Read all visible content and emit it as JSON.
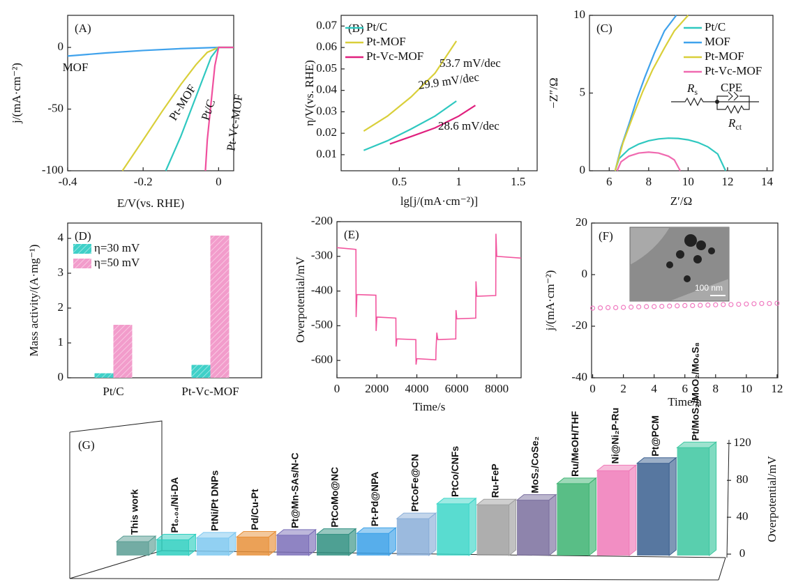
{
  "chart_data": [
    {
      "type": "line",
      "label": "(A)",
      "xlabel": "E/V(vs. RHE)",
      "ylabel": "j/(mA·cm⁻²)",
      "xlim": [
        -0.4,
        0.04
      ],
      "ylim": [
        -100,
        26
      ],
      "xticks": [
        -0.4,
        -0.2,
        0
      ],
      "yticks": [
        -100,
        -50,
        0
      ],
      "legend": false,
      "series": [
        {
          "name": "MOF",
          "color": "#3fa2ec",
          "x": [
            -0.4,
            -0.3,
            -0.2,
            -0.1,
            0,
            0.04
          ],
          "values": [
            -7,
            -4.5,
            -2.5,
            -1,
            0,
            0
          ]
        },
        {
          "name": "Pt-MOF",
          "color": "#d9cf3a",
          "x": [
            -0.255,
            -0.2,
            -0.15,
            -0.1,
            -0.06,
            -0.03,
            0,
            0.04
          ],
          "values": [
            -100,
            -75,
            -52,
            -30,
            -14,
            -4,
            0,
            0
          ]
        },
        {
          "name": "Pt/C",
          "color": "#2fc8c0",
          "x": [
            -0.14,
            -0.1,
            -0.07,
            -0.04,
            -0.02,
            0,
            0.04
          ],
          "values": [
            -100,
            -72,
            -48,
            -24,
            -8,
            0,
            0
          ]
        },
        {
          "name": "Pt-Vc-MOF",
          "color": "#f0509e",
          "x": [
            -0.035,
            -0.03,
            -0.02,
            -0.01,
            0,
            0.04
          ],
          "values": [
            -100,
            -75,
            -45,
            -15,
            0,
            0
          ]
        }
      ]
    },
    {
      "type": "line",
      "label": "(B)",
      "xlabel": "lg[j/(mA·cm⁻²)]",
      "ylabel": "η/V(vs. RHE)",
      "xlim": [
        0.01,
        1.66
      ],
      "ylim": [
        0.0025,
        0.075
      ],
      "xticks": [
        0.5,
        1.0,
        1.5
      ],
      "yticks": [
        0.01,
        0.02,
        0.03,
        0.04,
        0.05,
        0.06,
        0.07
      ],
      "legend": "upper left",
      "series": [
        {
          "name": "Pt/C",
          "color": "#2fc8c0",
          "x": [
            0.2,
            0.4,
            0.6,
            0.8,
            0.98
          ],
          "values": [
            0.012,
            0.0165,
            0.022,
            0.028,
            0.035
          ]
        },
        {
          "name": "Pt-MOF",
          "color": "#d9cf3a",
          "x": [
            0.2,
            0.4,
            0.6,
            0.8,
            0.98
          ],
          "values": [
            0.021,
            0.028,
            0.037,
            0.048,
            0.063
          ]
        },
        {
          "name": "Pt-Vc-MOF",
          "color": "#e0207e",
          "x": [
            0.42,
            0.6,
            0.8,
            1.0,
            1.14
          ],
          "values": [
            0.015,
            0.0185,
            0.0225,
            0.028,
            0.033
          ]
        }
      ],
      "annotations": [
        "53.7 mV/dec",
        "29.9 mV/dec",
        "28.6 mV/dec"
      ]
    },
    {
      "type": "line",
      "label": "(C)",
      "xlabel": "Z′/Ω",
      "ylabel": "−Z″/Ω",
      "xlim": [
        5,
        14.3
      ],
      "ylim": [
        0,
        10
      ],
      "xticks": [
        6,
        8,
        10,
        12,
        14
      ],
      "yticks": [
        0,
        5,
        10
      ],
      "legend": "upper right",
      "series": [
        {
          "name": "Pt/C",
          "color": "#2fc8c0",
          "x": [
            6.3,
            6.5,
            7,
            7.5,
            8,
            8.5,
            9,
            9.5,
            10,
            10.5,
            11,
            11.5,
            11.9
          ],
          "values": [
            0,
            0.78,
            1.39,
            1.72,
            1.93,
            2.05,
            2.1,
            2.08,
            1.99,
            1.82,
            1.54,
            1.08,
            0
          ]
        },
        {
          "name": "MOF",
          "color": "#3fa2ec",
          "x": [
            6.3,
            6.6,
            7,
            7.4,
            7.8,
            8.3,
            8.8,
            9.4
          ],
          "values": [
            0,
            1.5,
            3,
            4.6,
            6,
            7.6,
            9,
            10
          ]
        },
        {
          "name": "Pt-MOF",
          "color": "#d9cf3a",
          "x": [
            6.3,
            6.7,
            7.2,
            7.7,
            8.2,
            8.8,
            9.3,
            10
          ],
          "values": [
            0,
            1.8,
            3.5,
            5.1,
            6.5,
            7.9,
            9,
            10
          ]
        },
        {
          "name": "Pt-Vc-MOF",
          "color": "#f06ab0",
          "x": [
            6.4,
            6.6,
            7,
            7.5,
            8,
            8.5,
            9,
            9.3,
            9.6
          ],
          "values": [
            0,
            0.58,
            0.94,
            1.14,
            1.2,
            1.14,
            0.94,
            0.7,
            0
          ]
        }
      ],
      "inset_circuit": [
        {
          "main": "R",
          "sub": "s"
        },
        {
          "main": "CPE"
        },
        {
          "main": "R",
          "sub": "ct"
        }
      ]
    },
    {
      "type": "bar",
      "label": "(D)",
      "ylabel": "Mass activity/(A·mg⁻¹)",
      "categories": [
        "Pt/C",
        "Pt-Vc-MOF"
      ],
      "ylim": [
        0,
        4.44
      ],
      "yticks": [
        0,
        1,
        2,
        3,
        4
      ],
      "legend": "upper left",
      "series": [
        {
          "name": "η=30 mV",
          "color": "#3fd0c8",
          "values": [
            0.13,
            0.37
          ]
        },
        {
          "name": "η=50 mV",
          "color": "#f29ccb",
          "values": [
            1.52,
            4.08
          ]
        }
      ]
    },
    {
      "type": "line",
      "label": "(E)",
      "xlabel": "Time/s",
      "ylabel": "Overpotential/mV",
      "xlim": [
        0,
        9220
      ],
      "ylim": [
        -650,
        -200
      ],
      "xticks": [
        0,
        2000,
        4000,
        6000,
        8000
      ],
      "yticks": [
        -600,
        -500,
        -400,
        -300,
        -200
      ],
      "legend": false,
      "series": [
        {
          "color": "#f2559e",
          "x": [
            0,
            950,
            960,
            1000,
            1950,
            1960,
            2000,
            2950,
            2960,
            3000,
            3950,
            3960,
            4000,
            4950,
            4960,
            5000,
            5050,
            5950,
            5960,
            6000,
            6950,
            6960,
            7000,
            7950,
            7960,
            8000,
            9220
          ],
          "values": [
            -275,
            -280,
            -475,
            -410,
            -412,
            -515,
            -475,
            -478,
            -560,
            -538,
            -540,
            -612,
            -595,
            -598,
            -570,
            -520,
            -540,
            -538,
            -455,
            -480,
            -478,
            -372,
            -415,
            -413,
            -235,
            -300,
            -305
          ]
        }
      ]
    },
    {
      "type": "scatter",
      "label": "(F)",
      "xlabel": "Time/h",
      "ylabel": "j/(mA·cm⁻²)",
      "xlim": [
        -0.07,
        12.05
      ],
      "ylim": [
        -40,
        20
      ],
      "xticks": [
        0,
        2,
        4,
        6,
        8,
        10,
        12
      ],
      "yticks": [
        -40,
        -20,
        0,
        20
      ],
      "legend": false,
      "inset_scale_bar": "100 nm",
      "series": [
        {
          "color": "#f07ac0",
          "x": [
            0,
            0.5,
            1,
            1.5,
            2,
            2.5,
            3,
            3.5,
            4,
            4.5,
            5,
            5.5,
            6,
            6.5,
            7,
            7.5,
            8,
            8.5,
            9,
            9.5,
            10,
            10.5,
            11,
            11.5,
            12
          ],
          "values": [
            -13,
            -12.9,
            -12.8,
            -12.8,
            -12.7,
            -12.6,
            -12.5,
            -12.4,
            -12.4,
            -12.3,
            -12.2,
            -12.1,
            -12,
            -12,
            -11.9,
            -11.8,
            -11.7,
            -11.6,
            -11.6,
            -11.5,
            -11.4,
            -11.3,
            -11.2,
            -11.2,
            -11.1
          ]
        }
      ]
    },
    {
      "type": "bar3d",
      "label": "(G)",
      "ylabel": "Overpotential/mV",
      "ylim": [
        0,
        124
      ],
      "yticks": [
        0,
        40,
        80,
        120
      ],
      "categories": [
        "This work",
        "Pt₀.₀₄/Ni-DA",
        "PtNi/Pt DNPs",
        "Pd/Cu-Pt",
        "Pt@Mn-SAs/N-C",
        "PtCoMo@NC",
        "Pt-Pd@NPA",
        "PtCoFe@CN",
        "PtCo/CNFs",
        "Ru-FeP",
        "MoS₂/CoSe₂",
        "Ru/MeOH/THF",
        "Ni@Ni₂P-Ru",
        "Pt@PCM",
        "Pt/MoS₂/MoO₂/Mo₆S₈"
      ],
      "values": [
        15,
        17,
        19,
        20,
        22,
        23,
        24,
        40,
        56,
        55,
        60,
        78,
        92,
        100,
        117
      ],
      "colors": [
        "#5a9e94",
        "#2ecfc0",
        "#7ec8f0",
        "#e8913a",
        "#7b6fb8",
        "#2f8f80",
        "#3aa0e8",
        "#8aaed8",
        "#3cd6c8",
        "#a0a0a0",
        "#7a6f9e",
        "#3cb371",
        "#f07ab8",
        "#3a5f8f",
        "#3cc7a0"
      ]
    }
  ]
}
